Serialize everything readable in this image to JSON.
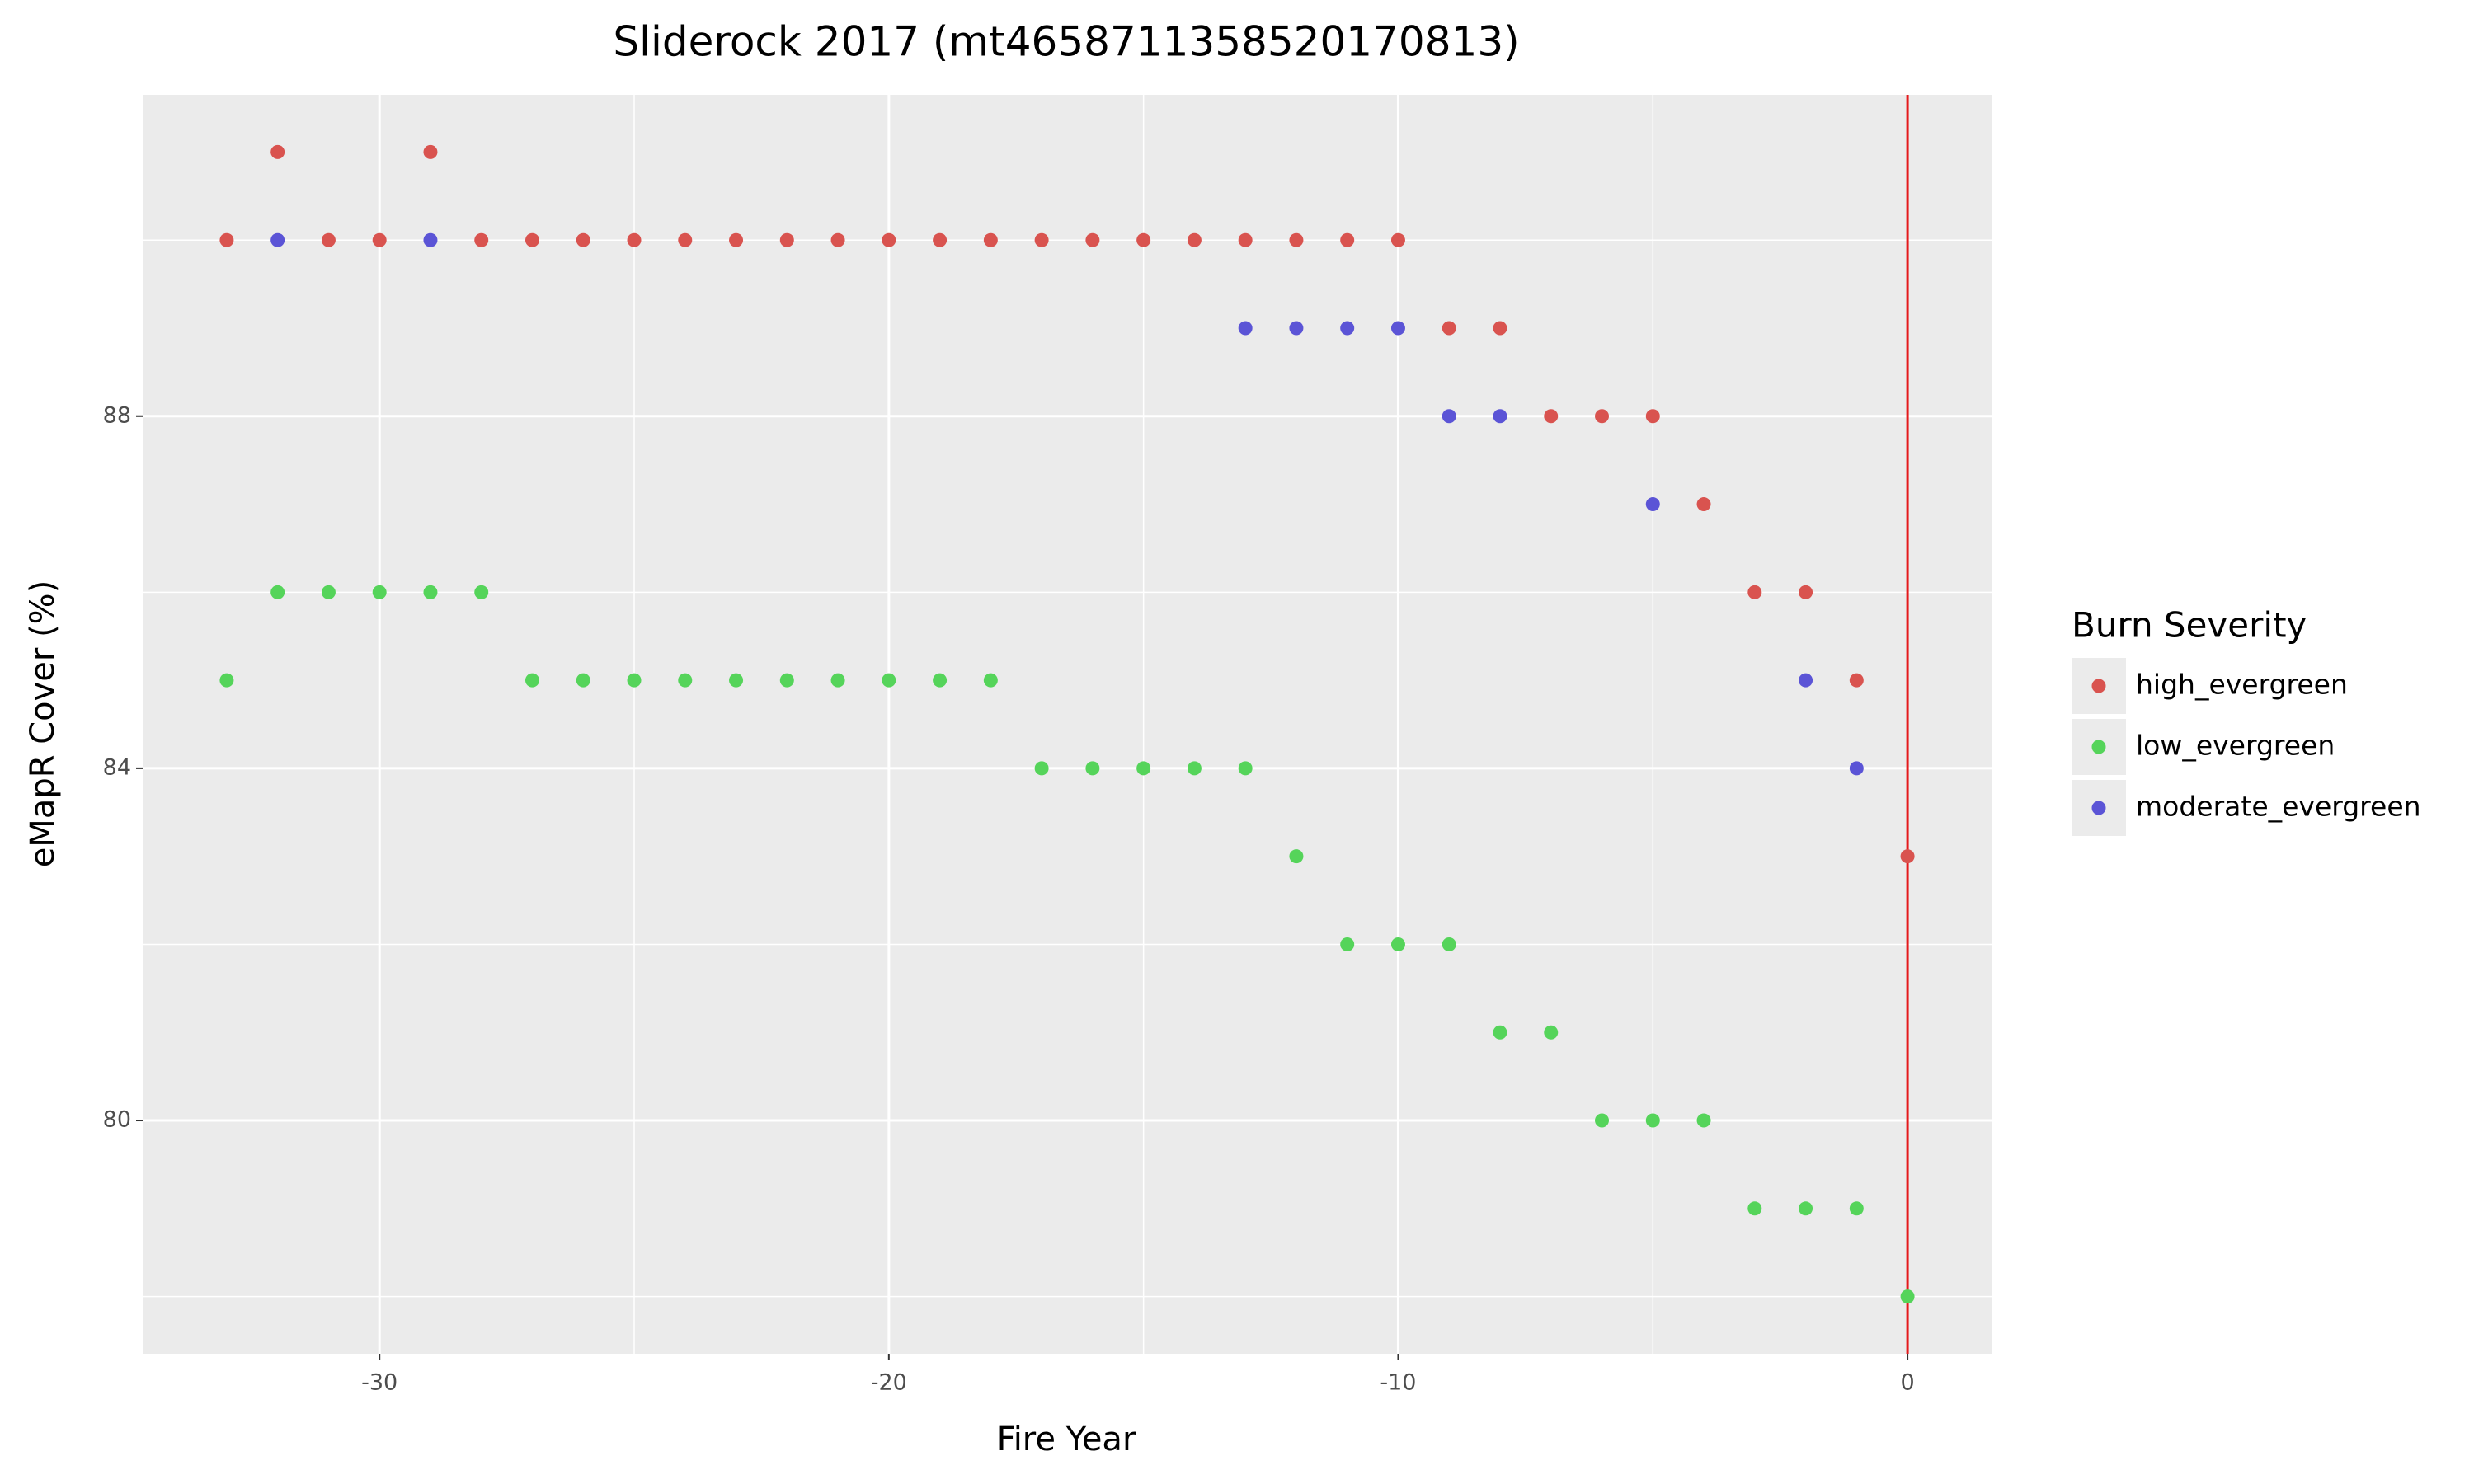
{
  "chart_data": {
    "type": "scatter",
    "title": "Sliderock 2017 (mt4658711358520170813)",
    "x_label": "Fire Year",
    "y_label": "eMapR Cover (%)",
    "legend_title": "Burn Severity",
    "legend_position": "right",
    "grid": true,
    "xlim": [
      -34.65,
      1.65
    ],
    "ylim": [
      77.35,
      91.65
    ],
    "xticks": [
      -30,
      -20,
      -10,
      0
    ],
    "yticks": [
      80,
      84,
      88
    ],
    "minor_xticks": [
      -25,
      -15,
      -5
    ],
    "minor_yticks": [
      78,
      82,
      86,
      90
    ],
    "reference_line": {
      "x": 0,
      "color": "#e41a1c"
    },
    "series": [
      {
        "name": "high_evergreen",
        "color": "#d9534f",
        "x": [
          -33,
          -32,
          -31,
          -30,
          -29,
          -28,
          -27,
          -26,
          -25,
          -24,
          -23,
          -22,
          -21,
          -20,
          -19,
          -18,
          -17,
          -16,
          -15,
          -14,
          -13,
          -12,
          -11,
          -10,
          -9,
          -8,
          -7,
          -6,
          -5,
          -4,
          -3,
          -2,
          -1,
          0
        ],
        "values": [
          90,
          91,
          90,
          90,
          91,
          90,
          90,
          90,
          90,
          90,
          90,
          90,
          90,
          90,
          90,
          90,
          90,
          90,
          90,
          90,
          90,
          90,
          90,
          90,
          89,
          89,
          88,
          88,
          88,
          87,
          86,
          86,
          85,
          83
        ]
      },
      {
        "name": "low_evergreen",
        "color": "#55d45a",
        "x": [
          -33,
          -32,
          -31,
          -30,
          -29,
          -28,
          -27,
          -26,
          -25,
          -24,
          -23,
          -22,
          -21,
          -20,
          -19,
          -18,
          -17,
          -16,
          -15,
          -14,
          -13,
          -12,
          -11,
          -10,
          -9,
          -8,
          -7,
          -6,
          -5,
          -4,
          -3,
          -2,
          -1,
          0
        ],
        "values": [
          85,
          86,
          86,
          86,
          86,
          86,
          85,
          85,
          85,
          85,
          85,
          85,
          85,
          85,
          85,
          85,
          84,
          84,
          84,
          84,
          84,
          83,
          82,
          82,
          82,
          81,
          81,
          80,
          80,
          80,
          79,
          79,
          79,
          78
        ]
      },
      {
        "name": "moderate_evergreen",
        "color": "#5b54d6",
        "x": [
          -32,
          -29,
          -13,
          -12,
          -11,
          -10,
          -9,
          -8,
          -5,
          -2,
          -1
        ],
        "values": [
          90,
          90,
          89,
          89,
          89,
          89,
          88,
          88,
          87,
          85,
          84
        ]
      }
    ]
  }
}
